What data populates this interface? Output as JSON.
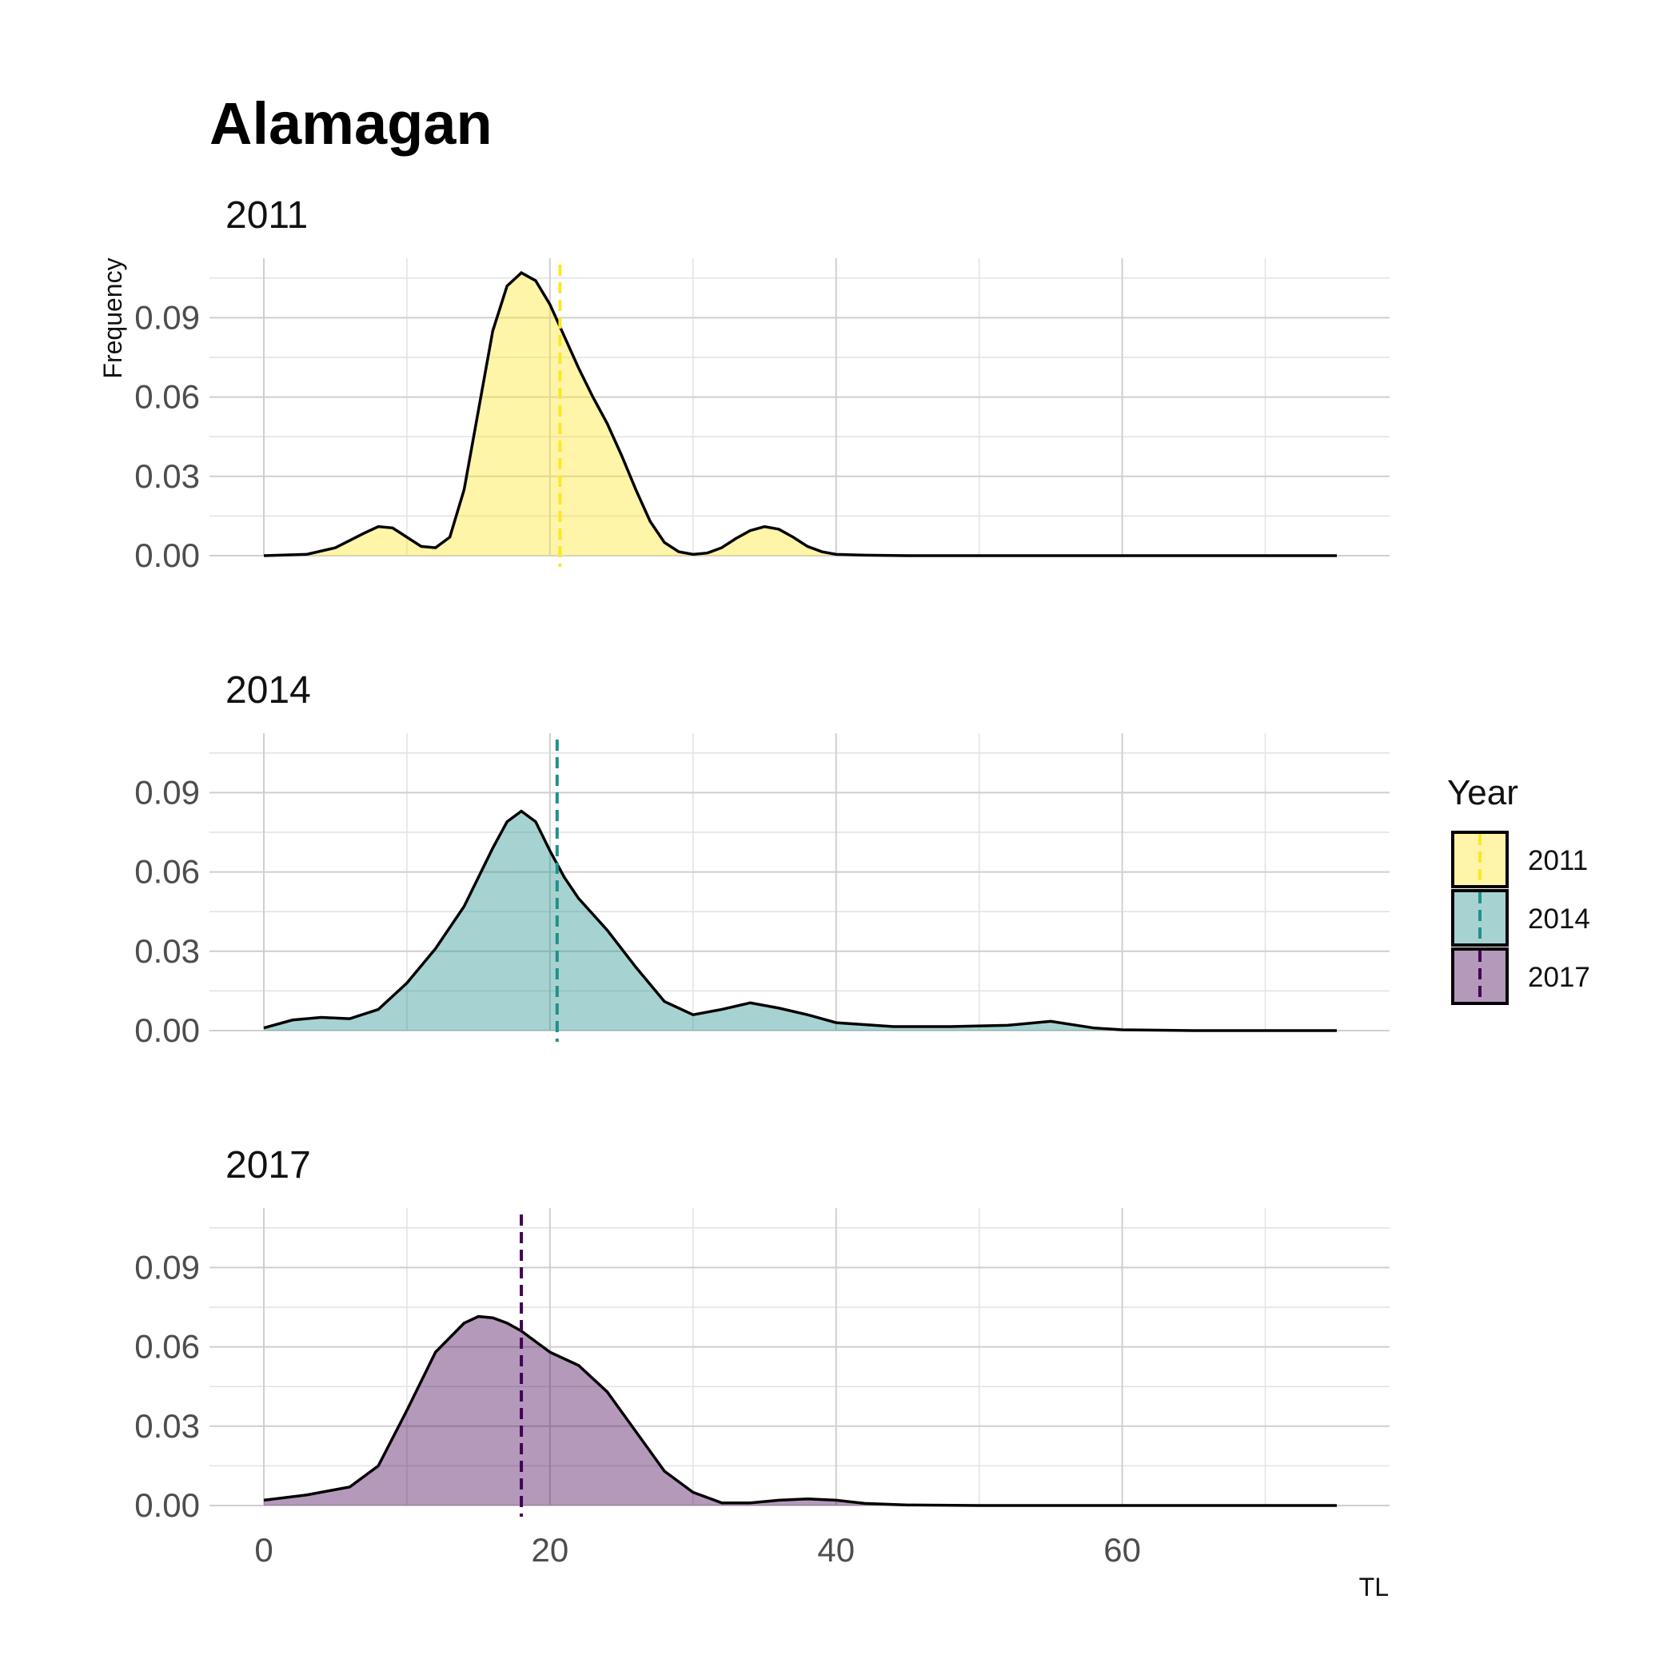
{
  "chart_data": {
    "type": "area",
    "subtype": "density-facets",
    "title": "Alamagan",
    "xlabel": "TL",
    "ylabel": "Frequency",
    "xlim": [
      0,
      75
    ],
    "ylim": [
      0,
      0.1125
    ],
    "x_ticks": [
      0,
      20,
      40,
      60
    ],
    "x_tick_labels": [
      "0",
      "20",
      "40",
      "60"
    ],
    "y_ticks": [
      0,
      0.03,
      0.06,
      0.09
    ],
    "y_tick_labels": [
      "0.00",
      "0.03",
      "0.06",
      "0.09"
    ],
    "grid": true,
    "legend": {
      "title": "Year",
      "position": "right",
      "entries": [
        {
          "label": "2011",
          "fill": "#fde725",
          "line": "#fde725"
        },
        {
          "label": "2014",
          "fill": "#21908c",
          "line": "#21908c"
        },
        {
          "label": "2017",
          "fill": "#440154",
          "line": "#440154"
        }
      ]
    },
    "fill_opacity": 0.4,
    "panels": [
      {
        "strip": "2011",
        "color": "#fde725",
        "mean_line_x": 20.7,
        "x": [
          0,
          3,
          5,
          7,
          8,
          9,
          10,
          11,
          12,
          13,
          14,
          15,
          16,
          17,
          18,
          19,
          20,
          21,
          22,
          23,
          24,
          25,
          26,
          27,
          28,
          29,
          30,
          31,
          32,
          33,
          34,
          35,
          36,
          37,
          38,
          39,
          40,
          42,
          45,
          50,
          60,
          75
        ],
        "y": [
          0.0,
          0.0005,
          0.003,
          0.0085,
          0.011,
          0.0105,
          0.007,
          0.0035,
          0.003,
          0.007,
          0.025,
          0.055,
          0.085,
          0.102,
          0.107,
          0.104,
          0.095,
          0.083,
          0.071,
          0.06,
          0.05,
          0.038,
          0.025,
          0.013,
          0.005,
          0.0015,
          0.0005,
          0.001,
          0.003,
          0.0065,
          0.0095,
          0.011,
          0.01,
          0.007,
          0.0035,
          0.0015,
          0.0005,
          0.0002,
          0.0,
          0.0,
          0.0,
          0.0
        ]
      },
      {
        "strip": "2014",
        "color": "#21908c",
        "mean_line_x": 20.5,
        "x": [
          0,
          2,
          4,
          6,
          8,
          10,
          12,
          14,
          16,
          17,
          18,
          19,
          20,
          21,
          22,
          24,
          26,
          28,
          30,
          32,
          34,
          36,
          38,
          40,
          44,
          48,
          52,
          55,
          58,
          60,
          65,
          75
        ],
        "y": [
          0.001,
          0.004,
          0.005,
          0.0045,
          0.008,
          0.018,
          0.031,
          0.047,
          0.069,
          0.079,
          0.083,
          0.079,
          0.068,
          0.058,
          0.05,
          0.038,
          0.024,
          0.011,
          0.006,
          0.008,
          0.0105,
          0.0085,
          0.006,
          0.003,
          0.0015,
          0.0015,
          0.002,
          0.0035,
          0.001,
          0.0003,
          0.0,
          0.0
        ]
      },
      {
        "strip": "2017",
        "color": "#440154",
        "mean_line_x": 18.0,
        "x": [
          0,
          3,
          6,
          8,
          10,
          12,
          14,
          15,
          16,
          17,
          18,
          19,
          20,
          22,
          24,
          26,
          28,
          30,
          32,
          34,
          36,
          38,
          40,
          42,
          45,
          50,
          60,
          75
        ],
        "y": [
          0.002,
          0.004,
          0.007,
          0.015,
          0.036,
          0.058,
          0.069,
          0.0715,
          0.071,
          0.069,
          0.066,
          0.062,
          0.058,
          0.053,
          0.043,
          0.028,
          0.013,
          0.005,
          0.001,
          0.001,
          0.002,
          0.0025,
          0.002,
          0.0008,
          0.0002,
          0.0,
          0.0,
          0.0
        ]
      }
    ]
  }
}
